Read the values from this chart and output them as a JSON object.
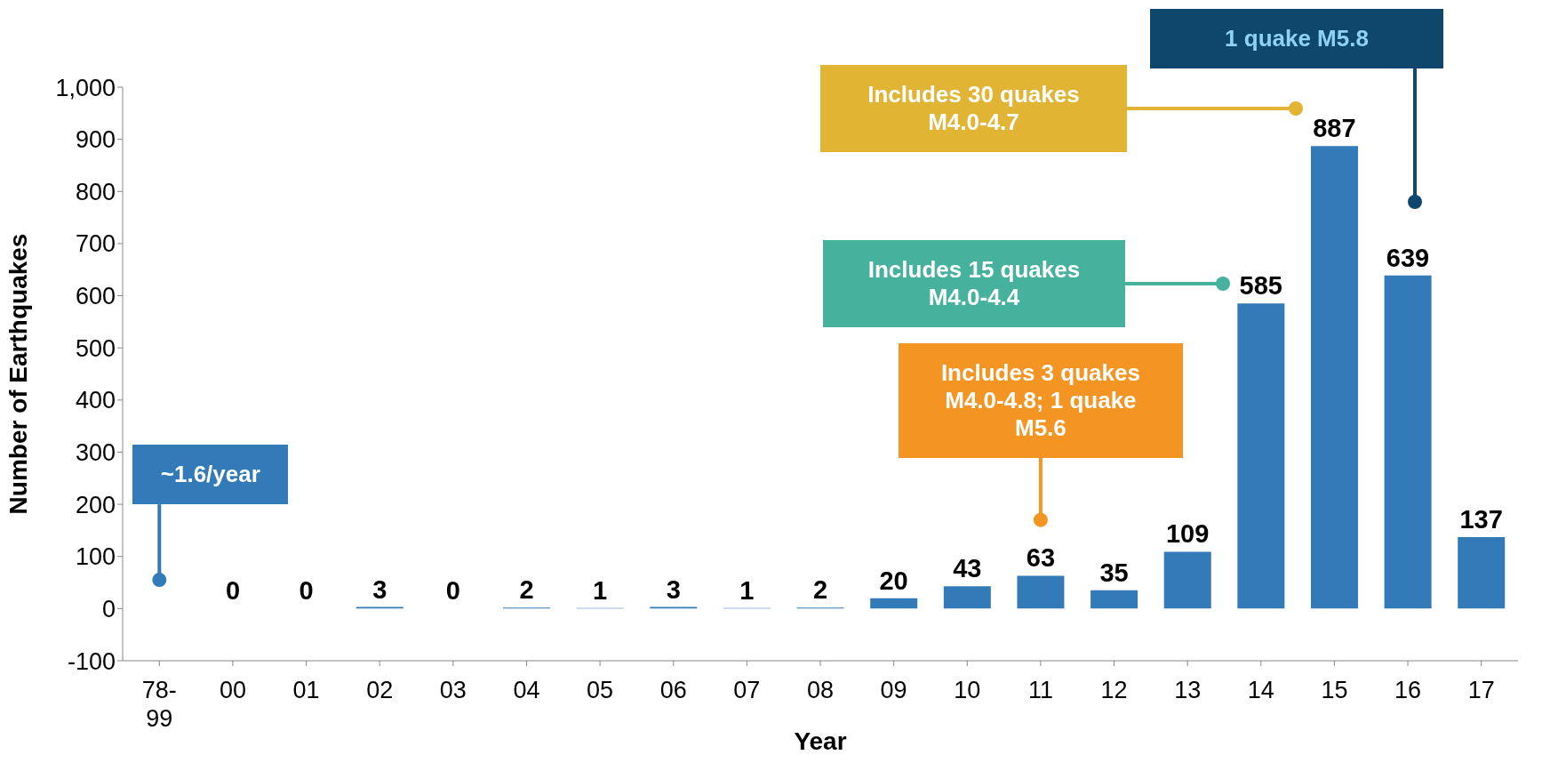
{
  "chart_data": {
    "type": "bar",
    "xlabel": "Year",
    "ylabel": "Number of Earthquakes",
    "categories": [
      "78-\n99",
      "00",
      "01",
      "02",
      "03",
      "04",
      "05",
      "06",
      "07",
      "08",
      "09",
      "10",
      "11",
      "12",
      "13",
      "14",
      "15",
      "16",
      "17"
    ],
    "values": [
      null,
      0,
      0,
      3,
      0,
      2,
      1,
      3,
      1,
      2,
      20,
      43,
      63,
      35,
      109,
      585,
      887,
      639,
      137
    ],
    "color": "#337ab8",
    "data_labels": true,
    "grid": false,
    "ylim": [
      -100,
      1000
    ],
    "yticks": [
      -100,
      0,
      100,
      200,
      300,
      400,
      500,
      600,
      700,
      800,
      900,
      {
        "value": 1000,
        "label": "1,000"
      }
    ],
    "annotations": [
      {
        "text": "~1.6/year",
        "x": "78-\n99",
        "y": 55
      },
      {
        "text": "Includes 3 quakes M4.0-4.8; 1 quake M5.6",
        "x": "11",
        "y": 170
      },
      "Includes 15 quakes M4.0-4.4",
      "Includes 30 quakes M4.0-4.7",
      "1 quake M5.8"
    ]
  }
}
